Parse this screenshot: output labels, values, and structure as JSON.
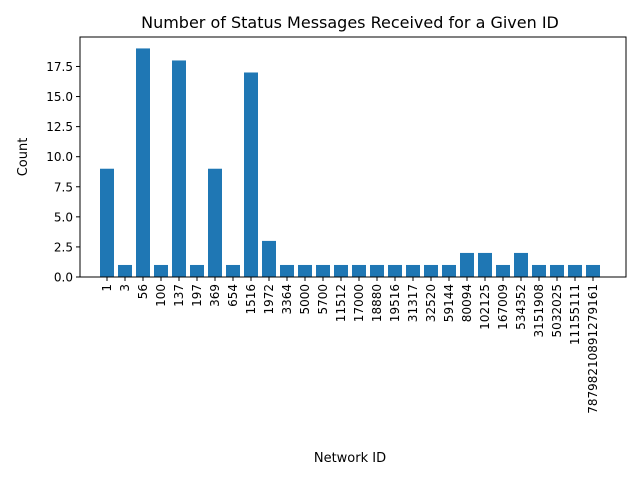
{
  "chart_data": {
    "type": "bar",
    "title": "Number of Status Messages Received for a Given ID",
    "xlabel": "Network ID",
    "ylabel": "Count",
    "categories": [
      "1",
      "3",
      "56",
      "100",
      "137",
      "197",
      "369",
      "654",
      "1516",
      "1972",
      "3364",
      "5000",
      "5700",
      "11512",
      "17000",
      "18880",
      "19516",
      "31317",
      "32520",
      "59144",
      "80094",
      "102125",
      "167009",
      "534352",
      "3151908",
      "5032025",
      "11155111",
      "78798210891279161"
    ],
    "values": [
      9,
      1,
      19,
      1,
      18,
      1,
      9,
      1,
      17,
      3,
      1,
      1,
      1,
      1,
      1,
      1,
      1,
      1,
      1,
      1,
      2,
      2,
      1,
      2,
      1,
      1,
      1,
      1
    ],
    "ylim": [
      0,
      19.95
    ],
    "yticks": [
      0.0,
      2.5,
      5.0,
      7.5,
      10.0,
      12.5,
      15.0,
      17.5
    ],
    "ytick_labels": [
      "0.0",
      "2.5",
      "5.0",
      "7.5",
      "10.0",
      "12.5",
      "15.0",
      "17.5"
    ],
    "bar_color": "#1f77b4",
    "grid": false,
    "legend": "none"
  }
}
